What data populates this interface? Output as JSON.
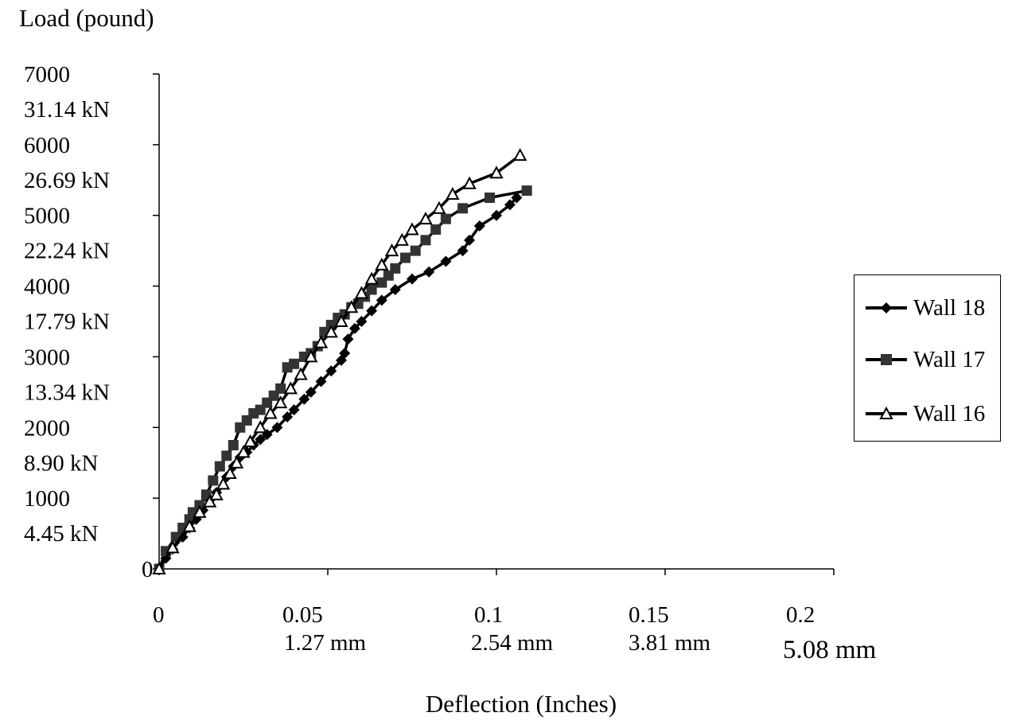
{
  "chart_data": {
    "type": "line",
    "ylabel": "Load (pound)",
    "xlabel": "Deflection (Inches)",
    "xlim": [
      0,
      0.2
    ],
    "ylim": [
      0,
      7000
    ],
    "xticks": [
      {
        "value": 0,
        "label": "0",
        "sub": ""
      },
      {
        "value": 0.05,
        "label": "0.05",
        "sub": "1.27 mm"
      },
      {
        "value": 0.1,
        "label": "0.1",
        "sub": "2.54 mm"
      },
      {
        "value": 0.15,
        "label": "0.15",
        "sub": "3.81 mm"
      },
      {
        "value": 0.2,
        "label": "0.2",
        "sub": "5.08 mm"
      }
    ],
    "yticks": [
      {
        "value": 0,
        "label": "0",
        "sub": ""
      },
      {
        "value": 1000,
        "label": "1000",
        "sub": "4.45 kN"
      },
      {
        "value": 2000,
        "label": "2000",
        "sub": "8.90 kN"
      },
      {
        "value": 3000,
        "label": "3000",
        "sub": "13.34 kN"
      },
      {
        "value": 4000,
        "label": "4000",
        "sub": "17.79 kN"
      },
      {
        "value": 5000,
        "label": "5000",
        "sub": "22.24 kN"
      },
      {
        "value": 6000,
        "label": "6000",
        "sub": "26.69 kN"
      },
      {
        "value": 7000,
        "label": "7000",
        "sub": "31.14 kN"
      }
    ],
    "grid": false,
    "legend_position": "right",
    "series": [
      {
        "name": "Wall 18",
        "marker": "diamond",
        "color": "#000000",
        "x": [
          0,
          0.002,
          0.004,
          0.007,
          0.009,
          0.011,
          0.013,
          0.015,
          0.017,
          0.02,
          0.022,
          0.024,
          0.026,
          0.028,
          0.03,
          0.032,
          0.035,
          0.038,
          0.04,
          0.043,
          0.045,
          0.048,
          0.051,
          0.054,
          0.055,
          0.056,
          0.058,
          0.06,
          0.063,
          0.066,
          0.07,
          0.075,
          0.08,
          0.085,
          0.09,
          0.092,
          0.095,
          0.1,
          0.104,
          0.106
        ],
        "y": [
          0,
          150,
          280,
          450,
          580,
          700,
          830,
          970,
          1080,
          1300,
          1450,
          1580,
          1650,
          1750,
          1830,
          1900,
          2000,
          2150,
          2250,
          2400,
          2500,
          2650,
          2800,
          2950,
          3050,
          3250,
          3400,
          3500,
          3650,
          3800,
          3950,
          4100,
          4200,
          4350,
          4500,
          4650,
          4850,
          5000,
          5150,
          5250
        ]
      },
      {
        "name": "Wall 17",
        "marker": "square",
        "color": "#000000",
        "x": [
          0,
          0.002,
          0.005,
          0.007,
          0.009,
          0.01,
          0.012,
          0.014,
          0.016,
          0.018,
          0.02,
          0.022,
          0.024,
          0.026,
          0.028,
          0.03,
          0.032,
          0.034,
          0.036,
          0.038,
          0.04,
          0.043,
          0.045,
          0.047,
          0.049,
          0.051,
          0.053,
          0.055,
          0.057,
          0.059,
          0.061,
          0.063,
          0.066,
          0.068,
          0.07,
          0.073,
          0.076,
          0.079,
          0.082,
          0.085,
          0.09,
          0.098,
          0.109
        ],
        "y": [
          0,
          250,
          450,
          580,
          700,
          800,
          900,
          1050,
          1250,
          1450,
          1600,
          1750,
          2000,
          2100,
          2200,
          2250,
          2350,
          2450,
          2550,
          2850,
          2900,
          3000,
          3050,
          3150,
          3350,
          3450,
          3550,
          3600,
          3700,
          3750,
          3850,
          3950,
          4050,
          4150,
          4250,
          4400,
          4500,
          4650,
          4800,
          4950,
          5100,
          5250,
          5350
        ]
      },
      {
        "name": "Wall 16",
        "marker": "triangle",
        "color": "#000000",
        "x": [
          0,
          0.004,
          0.009,
          0.012,
          0.015,
          0.017,
          0.019,
          0.021,
          0.023,
          0.025,
          0.027,
          0.03,
          0.033,
          0.036,
          0.039,
          0.042,
          0.045,
          0.048,
          0.051,
          0.054,
          0.057,
          0.06,
          0.063,
          0.066,
          0.069,
          0.072,
          0.075,
          0.079,
          0.083,
          0.087,
          0.092,
          0.1,
          0.107
        ],
        "y": [
          0,
          300,
          600,
          800,
          950,
          1050,
          1200,
          1350,
          1500,
          1650,
          1800,
          2000,
          2200,
          2350,
          2550,
          2750,
          3000,
          3200,
          3350,
          3500,
          3700,
          3900,
          4100,
          4300,
          4500,
          4650,
          4800,
          4950,
          5100,
          5300,
          5450,
          5600,
          5850
        ]
      }
    ]
  }
}
